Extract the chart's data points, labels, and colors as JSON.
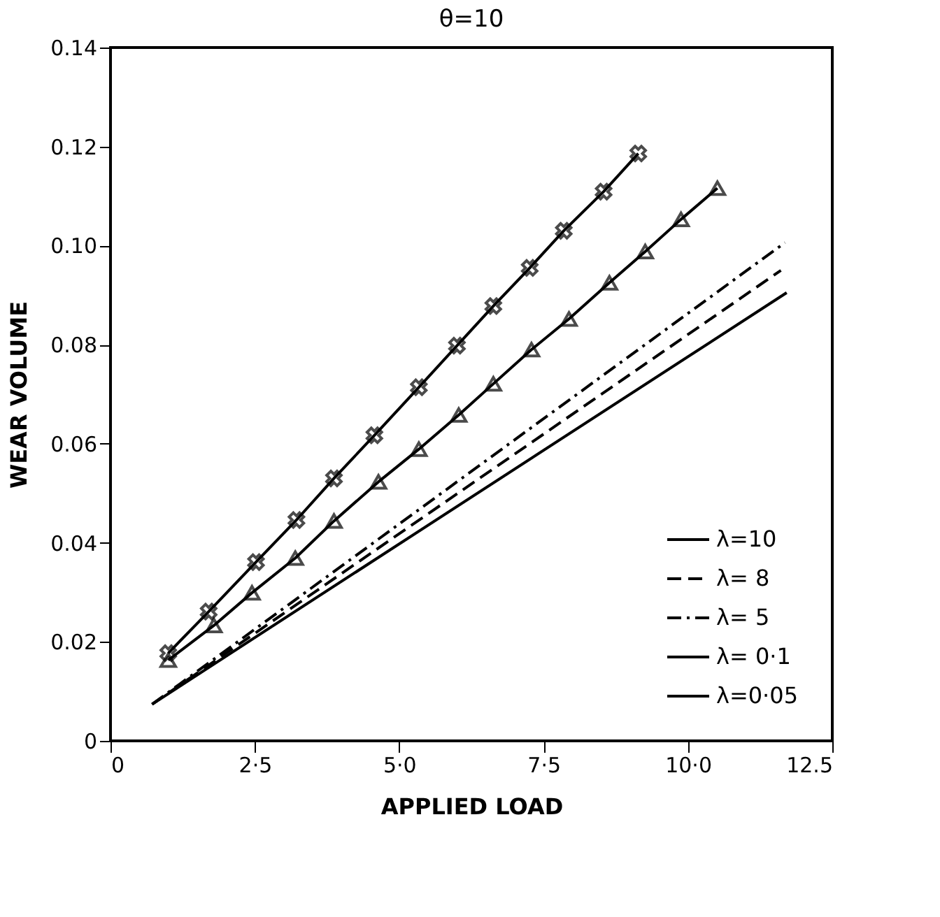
{
  "chart_data": {
    "type": "line",
    "title": "θ=10",
    "xlabel": "APPLIED LOAD",
    "ylabel": "WEAR VOLUME",
    "xlim": [
      0,
      12.5
    ],
    "ylim": [
      0,
      0.14
    ],
    "xticks": [
      0,
      {
        "value": 2.5,
        "label": "2·5"
      },
      {
        "value": 5,
        "label": "5·0"
      },
      {
        "value": 7.5,
        "label": "7·5"
      },
      {
        "value": 10,
        "label": "10·0"
      },
      12.5
    ],
    "yticks": [
      0,
      0.02,
      0.04,
      0.06,
      0.08,
      {
        "value": 0.1,
        "label": "0.10"
      },
      0.12,
      0.14
    ],
    "grid": false,
    "legend": "bottom right",
    "series": [
      {
        "name": "λ=10",
        "color": "#000000",
        "line_style": "solid",
        "marker": "none",
        "x": [
          0.72,
          11.71
        ],
        "values": [
          0.0074,
          0.0905
        ]
      },
      {
        "name": "λ= 8",
        "color": "#000000",
        "line_style": "dashed",
        "marker": "none",
        "x": [
          0.72,
          11.61
        ],
        "values": [
          0.0074,
          0.095
        ]
      },
      {
        "name": "λ= 5",
        "color": "#000000",
        "line_style": "dashdot",
        "marker": "none",
        "x": [
          0.72,
          11.68
        ],
        "values": [
          0.0074,
          0.1006
        ]
      },
      {
        "name": "λ= 0·1",
        "color": "#000000",
        "line_style": "solid",
        "marker": "triangle",
        "x": [
          1.0,
          1.79,
          2.45,
          3.2,
          3.87,
          4.64,
          5.34,
          6.03,
          6.63,
          7.29,
          7.94,
          8.64,
          9.26,
          9.88,
          10.51
        ],
        "values": [
          0.0163,
          0.0233,
          0.0299,
          0.0369,
          0.0444,
          0.0523,
          0.0589,
          0.0658,
          0.0721,
          0.079,
          0.0852,
          0.0925,
          0.0988,
          0.1053,
          0.1116
        ]
      },
      {
        "name": "λ=0·05",
        "color": "#000000",
        "line_style": "solid",
        "marker": "cross",
        "x": [
          1.0,
          1.7,
          2.52,
          3.22,
          3.87,
          4.57,
          5.34,
          6.0,
          6.63,
          7.26,
          7.85,
          8.54,
          9.14
        ],
        "values": [
          0.0177,
          0.0261,
          0.0361,
          0.0446,
          0.053,
          0.0617,
          0.0714,
          0.0798,
          0.0878,
          0.0955,
          0.103,
          0.1109,
          0.1186
        ]
      }
    ]
  }
}
